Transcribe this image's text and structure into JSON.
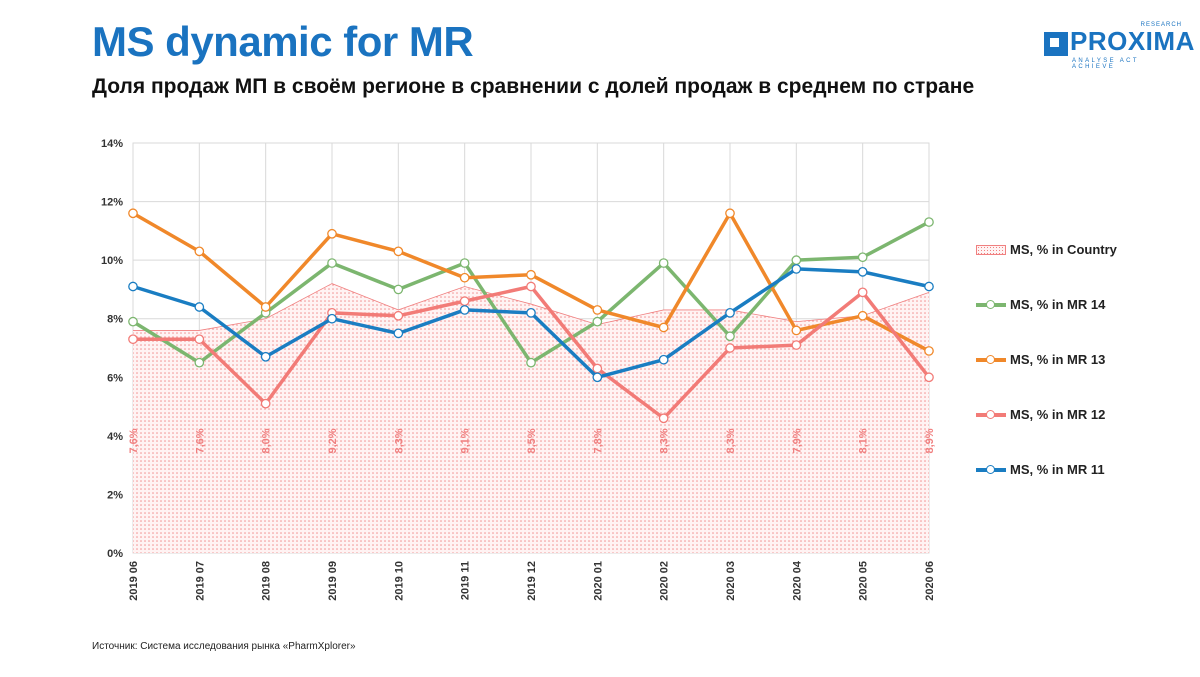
{
  "header": {
    "title": "MS dynamic for MR",
    "subtitle": "Доля продаж МП в своём регионе в сравнении с долей продаж в среднем по стране"
  },
  "logo": {
    "word": "PROXIMA",
    "top_text": "RESEARCH",
    "tagline": "ANALYSE ACT ACHIEVE"
  },
  "source": "Источник: Система исследования рынка «PharmXplorer»",
  "chart_data": {
    "type": "line",
    "categories": [
      "2019 06",
      "2019 07",
      "2019 08",
      "2019 09",
      "2019 10",
      "2019 11",
      "2019 12",
      "2020 01",
      "2020 02",
      "2020 03",
      "2020 04",
      "2020 05",
      "2020 06"
    ],
    "ylim": [
      0,
      14
    ],
    "yticks": [
      0,
      2,
      4,
      6,
      8,
      10,
      12,
      14
    ],
    "ytick_labels": [
      "0%",
      "2%",
      "4%",
      "6%",
      "8%",
      "10%",
      "12%",
      "14%"
    ],
    "grid": true,
    "legend_position": "right",
    "area": {
      "name": "MS, % in Country",
      "values": [
        7.6,
        7.6,
        8.0,
        9.2,
        8.3,
        9.1,
        8.5,
        7.8,
        8.3,
        8.3,
        7.9,
        8.1,
        8.9
      ],
      "data_labels": [
        "7,6%",
        "7,6%",
        "8,0%",
        "9,2%",
        "8,3%",
        "9,1%",
        "8,5%",
        "7,8%",
        "8,3%",
        "8,3%",
        "7,9%",
        "8,1%",
        "8,9%"
      ],
      "color": "#f08080"
    },
    "series": [
      {
        "name": "MS, % in MR 14",
        "color": "#7cb66f",
        "values": [
          7.9,
          6.5,
          8.2,
          9.9,
          9.0,
          9.9,
          6.5,
          7.9,
          9.9,
          7.4,
          10.0,
          10.1,
          11.3
        ]
      },
      {
        "name": "MS, % in MR 13",
        "color": "#f0882a",
        "values": [
          11.6,
          10.3,
          8.4,
          10.9,
          10.3,
          9.4,
          9.5,
          8.3,
          7.7,
          11.6,
          7.6,
          8.1,
          6.9
        ]
      },
      {
        "name": "MS, % in MR 12",
        "color": "#f27b77",
        "values": [
          7.3,
          7.3,
          5.1,
          8.2,
          8.1,
          8.6,
          9.1,
          6.3,
          4.6,
          7.0,
          7.1,
          8.9,
          6.0
        ]
      },
      {
        "name": "MS, % in MR 11",
        "color": "#1a7dc2",
        "values": [
          9.1,
          8.4,
          6.7,
          8.0,
          7.5,
          8.3,
          8.2,
          6.0,
          6.6,
          8.2,
          9.7,
          9.6,
          9.1
        ]
      }
    ]
  }
}
